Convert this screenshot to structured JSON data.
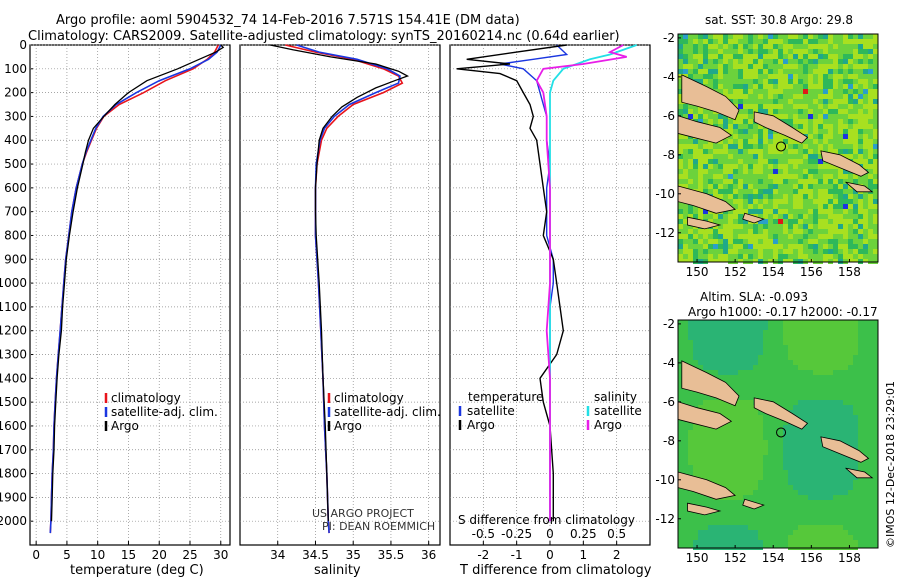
{
  "title": {
    "line1": "Argo profile: aoml 5904532_74 14-Feb-2016 7.571S 154.41E (DM data)",
    "line2": "Climatology: CARS2009. Satellite-adjusted climatology: synTS_20160214.nc (0.64d earlier)"
  },
  "depth_ticks": [
    0,
    100,
    200,
    300,
    400,
    500,
    600,
    700,
    800,
    900,
    1000,
    1100,
    1200,
    1300,
    1400,
    1500,
    1600,
    1700,
    1800,
    1900,
    2000
  ],
  "colors": {
    "climatology": "#e8141c",
    "satellite": "#1a36e0",
    "argo": "#000000",
    "sat_salinity": "#22e0e6",
    "sat_argo_s": "#e81ee8",
    "land": "#e8be96",
    "ocean": "#32c832",
    "bar_red": "#e01818",
    "bar_blue": "#1a36e0"
  },
  "chart_data": [
    {
      "type": "line",
      "name": "temperature",
      "xlabel": "temperature (deg C)",
      "ylabel": "",
      "xlim": [
        -1,
        31.5
      ],
      "ylim": [
        2100,
        0
      ],
      "xticks": [
        0,
        5,
        10,
        15,
        20,
        25,
        30
      ],
      "legend": [
        "climatology",
        "satellite-adj. clim.",
        "Argo"
      ],
      "series": [
        {
          "name": "climatology",
          "depth": [
            0,
            30,
            60,
            100,
            150,
            200,
            250,
            300,
            350,
            400,
            450,
            500,
            600,
            700,
            800,
            900,
            1000,
            1100,
            1200,
            1300,
            1400,
            1500,
            1600,
            1700,
            1800,
            1900,
            2000,
            2050
          ],
          "values": [
            29.6,
            29.0,
            27.8,
            25.5,
            21.0,
            17.5,
            13.5,
            11.0,
            9.8,
            9.0,
            8.2,
            7.5,
            6.5,
            5.8,
            5.3,
            4.8,
            4.5,
            4.2,
            3.9,
            3.6,
            3.3,
            3.1,
            2.9,
            2.8,
            2.6,
            2.5,
            2.4,
            2.3
          ]
        },
        {
          "name": "satellite-adj. clim.",
          "depth": [
            0,
            30,
            60,
            100,
            150,
            200,
            250,
            300,
            350,
            400,
            450,
            500,
            600,
            700,
            800,
            900,
            1000,
            1100,
            1200,
            1300,
            1400,
            1500,
            1600,
            1700,
            1800,
            1900,
            2000,
            2050
          ],
          "values": [
            30.0,
            29.4,
            28.0,
            25.0,
            20.0,
            16.3,
            13.0,
            10.9,
            9.7,
            8.9,
            8.1,
            7.5,
            6.5,
            5.8,
            5.3,
            4.8,
            4.5,
            4.2,
            3.9,
            3.6,
            3.3,
            3.1,
            2.9,
            2.8,
            2.6,
            2.5,
            2.4,
            2.3
          ]
        },
        {
          "name": "Argo",
          "depth": [
            0,
            10,
            30,
            60,
            100,
            150,
            200,
            250,
            300,
            350,
            400,
            450,
            500,
            600,
            700,
            800,
            900,
            1000,
            1100,
            1200,
            1300,
            1400,
            1500,
            1600,
            1700,
            1800,
            1900,
            2000
          ],
          "values": [
            30.0,
            30.4,
            29.2,
            26.5,
            23.0,
            18.0,
            15.0,
            12.8,
            11.0,
            9.3,
            8.5,
            8.0,
            7.6,
            6.7,
            6.0,
            5.4,
            4.9,
            4.6,
            4.3,
            4.1,
            3.7,
            3.4,
            3.2,
            3.0,
            2.9,
            2.7,
            2.6,
            2.5
          ]
        }
      ]
    },
    {
      "type": "line",
      "name": "salinity",
      "xlabel": "salinity",
      "xlim": [
        33.5,
        36.15
      ],
      "ylim": [
        2100,
        0
      ],
      "xticks": [
        34,
        34.5,
        35,
        35.5,
        36
      ],
      "tick_labels": [
        "34",
        "34.5",
        "35",
        "35.5",
        "36"
      ],
      "legend": [
        "climatology",
        "satellite-adj. clim.",
        "Argo"
      ],
      "annotation": [
        "US ARGO PROJECT",
        "PI: DEAN ROEMMICH"
      ],
      "series": [
        {
          "name": "climatology",
          "depth": [
            0,
            30,
            60,
            100,
            130,
            160,
            200,
            250,
            300,
            350,
            400,
            500,
            600,
            700,
            800,
            900,
            1000,
            1200,
            1400,
            1600,
            1800,
            2000,
            2050
          ],
          "values": [
            34.1,
            34.5,
            35.0,
            35.4,
            35.6,
            35.65,
            35.4,
            35.0,
            34.8,
            34.65,
            34.58,
            34.52,
            34.5,
            34.5,
            34.5,
            34.52,
            34.54,
            34.57,
            34.6,
            34.62,
            34.65,
            34.67,
            34.68
          ]
        },
        {
          "name": "satellite-adj. clim.",
          "depth": [
            0,
            30,
            60,
            100,
            130,
            160,
            200,
            250,
            300,
            350,
            400,
            500,
            600,
            700,
            800,
            900,
            1000,
            1200,
            1400,
            1600,
            1800,
            2000,
            2050
          ],
          "values": [
            34.25,
            34.55,
            35.05,
            35.45,
            35.62,
            35.6,
            35.3,
            34.95,
            34.75,
            34.62,
            34.56,
            34.51,
            34.5,
            34.5,
            34.5,
            34.52,
            34.54,
            34.57,
            34.6,
            34.62,
            34.65,
            34.67,
            34.68
          ]
        },
        {
          "name": "Argo",
          "depth": [
            0,
            20,
            50,
            80,
            110,
            130,
            150,
            180,
            220,
            260,
            300,
            350,
            400,
            500,
            600,
            700,
            800,
            900,
            1000,
            1200,
            1400,
            1600,
            1800,
            2000
          ],
          "values": [
            33.9,
            34.2,
            34.7,
            35.3,
            35.6,
            35.72,
            35.55,
            35.3,
            35.05,
            34.85,
            34.72,
            34.6,
            34.55,
            34.52,
            34.5,
            34.5,
            34.51,
            34.53,
            34.55,
            34.58,
            34.6,
            34.63,
            34.65,
            34.67
          ]
        }
      ]
    },
    {
      "type": "line",
      "name": "difference",
      "xlabel": "T difference from climatology",
      "xlabel2": "S difference from climatology",
      "xlim": [
        -3,
        3
      ],
      "ylim": [
        2100,
        0
      ],
      "xticks": [
        -2,
        -1,
        0,
        1,
        2
      ],
      "xticks2": [
        -0.5,
        -0.25,
        0,
        0.25,
        0.5
      ],
      "tick_labels2": [
        "-0.5",
        "-0.25",
        "0",
        "0.25",
        "0.5"
      ],
      "legend_left_title": "temperature",
      "legend_right_title": "salinity",
      "legend": [
        "satellite",
        "Argo",
        "satellite",
        "Argo"
      ],
      "series": [
        {
          "name": "T satellite",
          "depth": [
            0,
            40,
            60,
            80,
            100,
            150,
            200,
            250,
            300,
            400,
            500,
            600,
            700,
            800,
            900,
            1000,
            1100,
            1200,
            1400,
            1600,
            1800,
            2000
          ],
          "values": [
            0.2,
            0.5,
            -0.5,
            -1.5,
            -0.8,
            -0.4,
            -0.3,
            -0.2,
            -0.1,
            -0.1,
            0.0,
            -0.1,
            -0.1,
            -0.1,
            0.1,
            0.1,
            0.0,
            0.0,
            0.0,
            0.0,
            0.0,
            0.0
          ]
        },
        {
          "name": "T Argo",
          "depth": [
            0,
            30,
            60,
            80,
            100,
            120,
            150,
            200,
            250,
            300,
            350,
            400,
            500,
            600,
            700,
            800,
            900,
            1000,
            1100,
            1200,
            1300,
            1400,
            1500,
            1600,
            1800,
            2000
          ],
          "values": [
            0.5,
            -1.0,
            -2.5,
            -1.2,
            -2.8,
            -1.5,
            -1.0,
            -0.8,
            -0.6,
            -0.5,
            -0.6,
            -0.4,
            -0.3,
            -0.2,
            -0.1,
            -0.2,
            0.1,
            0.2,
            0.3,
            0.4,
            0.2,
            -0.3,
            -0.2,
            0.0,
            0.1,
            0.1
          ]
        },
        {
          "name": "S satellite",
          "depth": [
            0,
            40,
            60,
            80,
            100,
            150,
            200,
            300,
            400,
            600,
            800,
            1000,
            1200,
            1400,
            1600,
            1800,
            2000
          ],
          "values": [
            2.6,
            1.8,
            1.2,
            0.8,
            0.4,
            0.1,
            0.0,
            0.0,
            0.0,
            0.0,
            0.0,
            0.0,
            0.0,
            0.0,
            0.0,
            0.0,
            0.0
          ]
        },
        {
          "name": "S Argo",
          "depth": [
            0,
            30,
            50,
            80,
            100,
            150,
            200,
            300,
            400,
            600,
            800,
            1000,
            1200,
            1400,
            1600,
            1800,
            2000
          ],
          "values": [
            2.2,
            1.8,
            2.3,
            1.0,
            -0.2,
            -0.4,
            -0.2,
            -0.1,
            -0.1,
            0.0,
            0.0,
            0.0,
            -0.1,
            0.0,
            0.0,
            0.0,
            0.0
          ]
        }
      ]
    },
    {
      "type": "heatmap",
      "name": "sst_map",
      "title": "sat. SST: 30.8 Argo: 29.8",
      "xlim": [
        149,
        159.5
      ],
      "ylim": [
        -13.5,
        -1.8
      ],
      "xticks": [
        150,
        152,
        154,
        156,
        158
      ],
      "yticks": [
        -2,
        -4,
        -6,
        -8,
        -10,
        -12
      ],
      "argo_position": [
        154.41,
        -7.571
      ]
    },
    {
      "type": "heatmap",
      "name": "sla_map",
      "title": "Altim. SLA: -0.093",
      "subtitle": "Argo h1000: -0.17 h2000: -0.17",
      "xlim": [
        149,
        159.5
      ],
      "ylim": [
        -13.5,
        -1.8
      ],
      "xticks": [
        150,
        152,
        154,
        156,
        158
      ],
      "yticks": [
        -2,
        -4,
        -6,
        -8,
        -10,
        -12
      ],
      "argo_position": [
        154.41,
        -7.571
      ]
    }
  ],
  "credit": "©IMOS 12-Dec-2018 23:29:01"
}
